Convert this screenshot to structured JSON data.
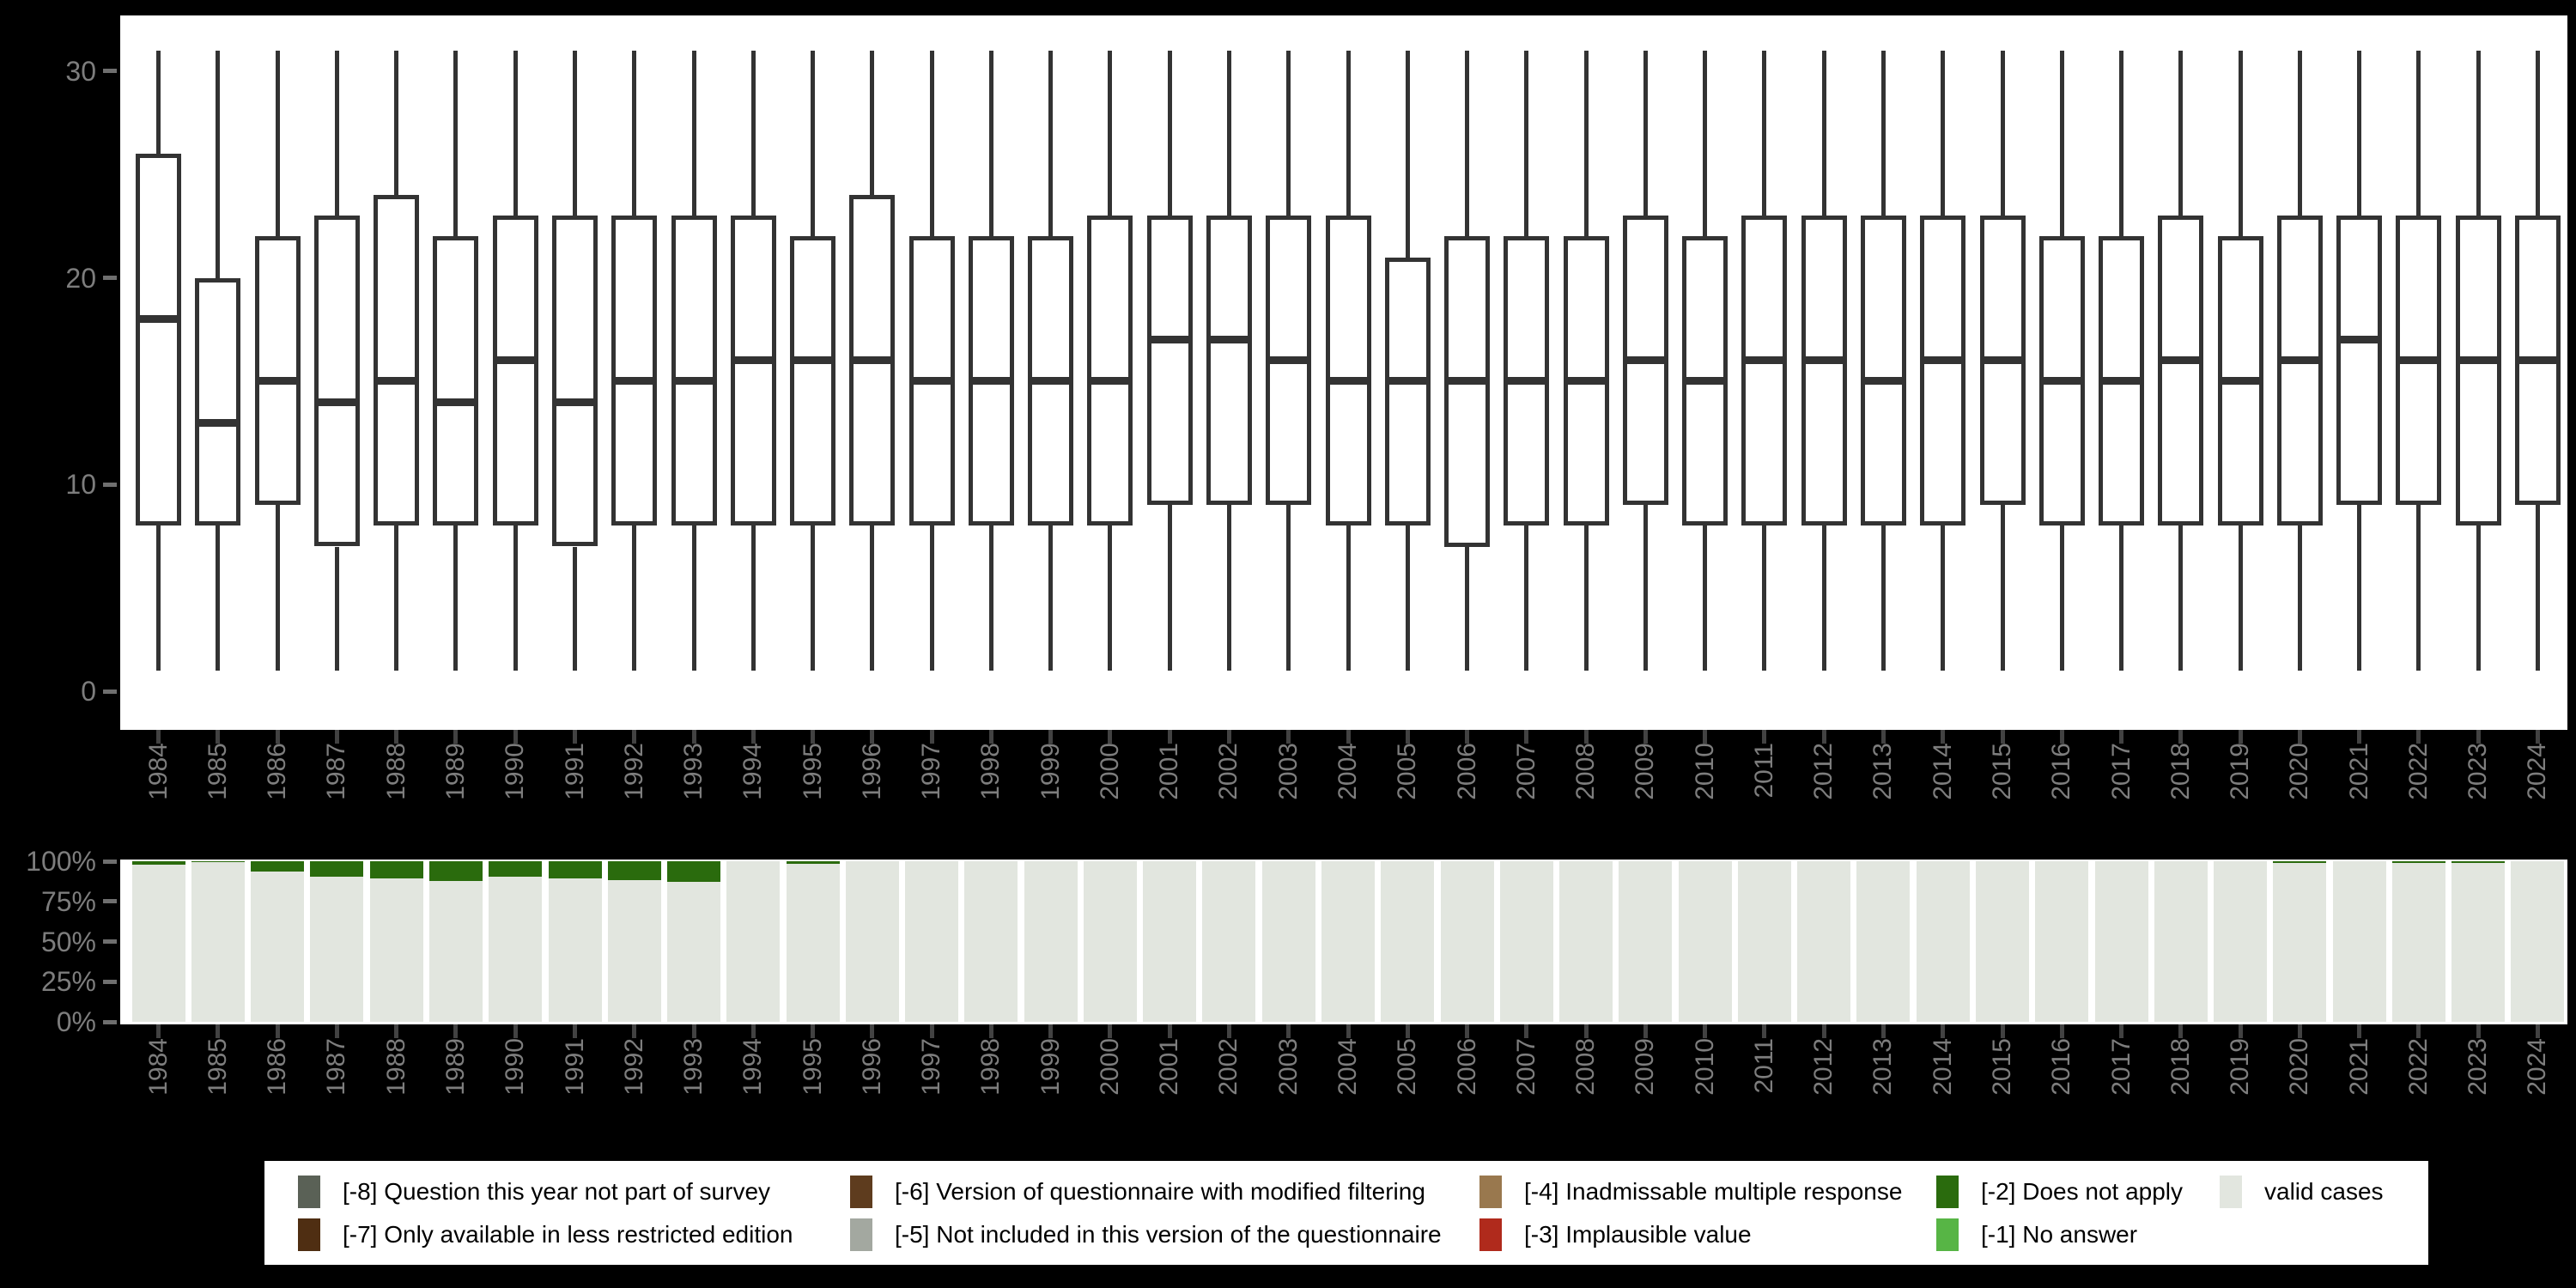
{
  "colors": {
    "background": "#000000",
    "panel": "#ffffff",
    "box_stroke": "#333333",
    "axis_text": "#7d7d7d",
    "valid_cases": "#e2e6df",
    "does_not_apply": "#2a6b0d",
    "no_answer": "#57b545",
    "implausible": "#b02a1c",
    "inadmissable": "#99784e",
    "not_included": "#a3a8a0",
    "modified_filtering": "#5e3c1e",
    "less_restricted": "#4f2e12",
    "not_part_of_survey": "#5a6156"
  },
  "chart_data": [
    {
      "type": "boxplot",
      "title": "",
      "xlabel": "",
      "ylabel": "",
      "ylim": [
        0,
        31
      ],
      "yticks": [
        0,
        10,
        20,
        30
      ],
      "ytick_labels": [
        "0",
        "10",
        "20",
        "30"
      ],
      "grid": false,
      "categories": [
        "1984",
        "1985",
        "1986",
        "1987",
        "1988",
        "1989",
        "1990",
        "1991",
        "1992",
        "1993",
        "1994",
        "1995",
        "1996",
        "1997",
        "1998",
        "1999",
        "2000",
        "2001",
        "2002",
        "2003",
        "2004",
        "2005",
        "2006",
        "2007",
        "2008",
        "2009",
        "2010",
        "2011",
        "2012",
        "2013",
        "2014",
        "2015",
        "2016",
        "2017",
        "2018",
        "2019",
        "2020",
        "2021",
        "2022",
        "2023",
        "2024"
      ],
      "series": [
        {
          "name": "whisker_low",
          "values": [
            1,
            1,
            1,
            1,
            1,
            1,
            1,
            1,
            1,
            1,
            1,
            1,
            1,
            1,
            1,
            1,
            1,
            1,
            1,
            1,
            1,
            1,
            1,
            1,
            1,
            1,
            1,
            1,
            1,
            1,
            1,
            1,
            1,
            1,
            1,
            1,
            1,
            1,
            1,
            1,
            1
          ]
        },
        {
          "name": "q1",
          "values": [
            8,
            8,
            9,
            7,
            8,
            8,
            8,
            7,
            8,
            8,
            8,
            8,
            8,
            8,
            8,
            8,
            8,
            9,
            9,
            9,
            8,
            8,
            7,
            8,
            8,
            9,
            8,
            8,
            8,
            8,
            8,
            9,
            8,
            8,
            8,
            8,
            8,
            9,
            9,
            8,
            9
          ]
        },
        {
          "name": "median",
          "values": [
            18,
            13,
            15,
            14,
            15,
            14,
            16,
            14,
            15,
            15,
            16,
            16,
            16,
            15,
            15,
            15,
            15,
            17,
            17,
            16,
            15,
            15,
            15,
            15,
            15,
            16,
            15,
            16,
            16,
            15,
            16,
            16,
            15,
            15,
            16,
            15,
            16,
            17,
            16,
            16,
            16
          ]
        },
        {
          "name": "q3",
          "values": [
            26,
            20,
            22,
            23,
            24,
            22,
            23,
            23,
            23,
            23,
            23,
            22,
            24,
            22,
            22,
            22,
            23,
            23,
            23,
            23,
            23,
            21,
            22,
            22,
            22,
            23,
            22,
            23,
            23,
            23,
            23,
            23,
            22,
            22,
            23,
            22,
            23,
            23,
            23,
            23,
            23
          ]
        },
        {
          "name": "whisker_high",
          "values": [
            31,
            31,
            31,
            31,
            31,
            31,
            31,
            31,
            31,
            31,
            31,
            31,
            31,
            31,
            31,
            31,
            31,
            31,
            31,
            31,
            31,
            31,
            31,
            31,
            31,
            31,
            31,
            31,
            31,
            31,
            31,
            31,
            31,
            31,
            31,
            31,
            31,
            31,
            31,
            31,
            31
          ]
        }
      ]
    },
    {
      "type": "bar",
      "stacked": true,
      "percent": true,
      "title": "",
      "ylim": [
        0,
        100
      ],
      "yticks": [
        0,
        25,
        50,
        75,
        100
      ],
      "ytick_labels": [
        "0%",
        "25%",
        "50%",
        "75%",
        "100%"
      ],
      "categories": [
        "1984",
        "1985",
        "1986",
        "1987",
        "1988",
        "1989",
        "1990",
        "1991",
        "1992",
        "1993",
        "1994",
        "1995",
        "1996",
        "1997",
        "1998",
        "1999",
        "2000",
        "2001",
        "2002",
        "2003",
        "2004",
        "2005",
        "2006",
        "2007",
        "2008",
        "2009",
        "2010",
        "2011",
        "2012",
        "2013",
        "2014",
        "2015",
        "2016",
        "2017",
        "2018",
        "2019",
        "2020",
        "2021",
        "2022",
        "2023",
        "2024"
      ],
      "series": [
        {
          "name": "valid cases",
          "color": "#e2e6df",
          "values": [
            98,
            99.3,
            93.5,
            90.5,
            89.5,
            87.5,
            90.5,
            89.5,
            88,
            87,
            100,
            98.5,
            100,
            100,
            100,
            100,
            100,
            100,
            100,
            100,
            100,
            100,
            100,
            100,
            100,
            100,
            100,
            100,
            100,
            100,
            100,
            100,
            100,
            100,
            100,
            100,
            99,
            100,
            99,
            99,
            100
          ]
        },
        {
          "name": "[-2] Does not apply",
          "color": "#2a6b0d",
          "values": [
            2,
            0.7,
            6.5,
            9.5,
            10.5,
            12.5,
            9.5,
            10.5,
            12,
            13,
            0,
            1.5,
            0,
            0,
            0,
            0,
            0,
            0,
            0,
            0,
            0,
            0,
            0,
            0,
            0,
            0,
            0,
            0,
            0,
            0,
            0,
            0,
            0,
            0,
            0,
            0,
            1,
            0,
            1,
            1,
            0
          ]
        }
      ]
    }
  ],
  "legend": {
    "row1": [
      {
        "label": "[-8] Question this year not part of survey",
        "color": "#5a6156"
      },
      {
        "label": "[-6] Version of questionnaire with modified filtering",
        "color": "#5e3c1e"
      },
      {
        "label": "[-4] Inadmissable multiple response",
        "color": "#99784e"
      },
      {
        "label": "[-2] Does not apply",
        "color": "#2a6b0d"
      },
      {
        "label": "valid cases",
        "color": "#e2e6df"
      }
    ],
    "row2": [
      {
        "label": "[-7] Only available in less restricted edition",
        "color": "#4f2e12"
      },
      {
        "label": "[-5] Not included in this version of the questionnaire",
        "color": "#a3a8a0"
      },
      {
        "label": "[-3] Implausible value",
        "color": "#b02a1c"
      },
      {
        "label": "[-1] No answer",
        "color": "#57b545"
      }
    ]
  }
}
